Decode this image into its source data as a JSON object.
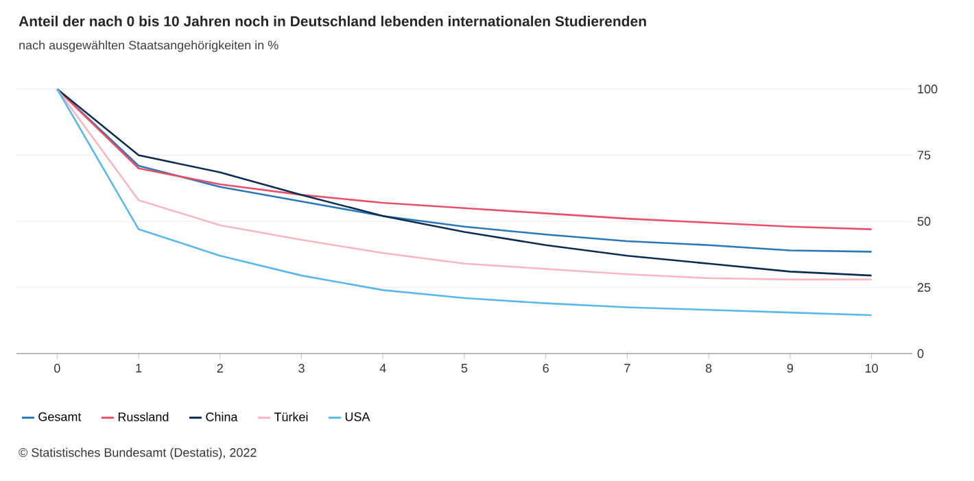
{
  "chart_data": {
    "type": "line",
    "title": "Anteil der nach 0 bis 10 Jahren noch in Deutschland lebenden internationalen Studierenden",
    "subtitle": "nach ausgewählten Staatsangehörigkeiten in %",
    "x": [
      0,
      1,
      2,
      3,
      4,
      5,
      6,
      7,
      8,
      9,
      10
    ],
    "series": [
      {
        "name": "Gesamt",
        "color": "#2a77b8",
        "values": [
          100,
          71,
          63,
          57.5,
          52,
          48,
          45,
          42.5,
          41,
          39,
          38.5
        ]
      },
      {
        "name": "Russland",
        "color": "#e8506a",
        "values": [
          100,
          70,
          64,
          60,
          57,
          55,
          53,
          51,
          49.5,
          48,
          47
        ]
      },
      {
        "name": "China",
        "color": "#0c2d50",
        "values": [
          100,
          75,
          68.5,
          60,
          52,
          46,
          41,
          37,
          34,
          31,
          29.5
        ]
      },
      {
        "name": "Türkei",
        "color": "#f7b6c0",
        "values": [
          100,
          58,
          48.5,
          43,
          38,
          34,
          32,
          30,
          28.5,
          28,
          28
        ]
      },
      {
        "name": "USA",
        "color": "#5ab8e6",
        "values": [
          100,
          47,
          37,
          29.5,
          24,
          21,
          19,
          17.5,
          16.5,
          15.5,
          14.5
        ]
      }
    ],
    "xlim": [
      -0.5,
      10.5
    ],
    "ylim": [
      0,
      100
    ],
    "xticks": [
      0,
      1,
      2,
      3,
      4,
      5,
      6,
      7,
      8,
      9,
      10
    ],
    "yticks": [
      0,
      25,
      50,
      75,
      100
    ],
    "grid": "y",
    "legend": "bottom",
    "marker": "none",
    "line_style": "solid",
    "annotations": [
      "© Statistisches Bundesamt (Destatis), 2022"
    ]
  }
}
